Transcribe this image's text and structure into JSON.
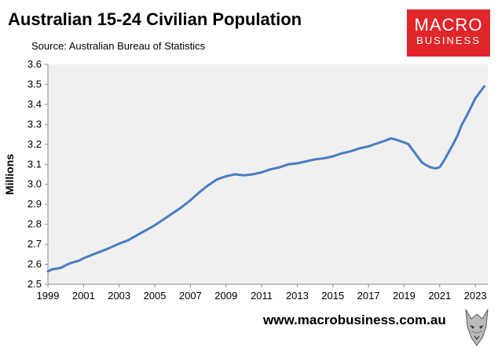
{
  "header": {
    "title": "Australian 15-24 Civilian Population",
    "source": "Source: Australian Bureau of Statistics"
  },
  "logo": {
    "top": "MACRO",
    "bottom": "BUSINESS",
    "color": "#e0262a"
  },
  "footer": {
    "url": "www.macrobusiness.com.au",
    "emblem_icon": "wolf-icon"
  },
  "chart_data": {
    "type": "line",
    "title": "Australian 15-24 Civilian Population",
    "xlabel": "",
    "ylabel": "Millions",
    "xlim": [
      1999,
      2023.7
    ],
    "ylim": [
      2.5,
      3.6
    ],
    "yticks": [
      "2.5",
      "2.6",
      "2.7",
      "2.8",
      "2.9",
      "3.0",
      "3.1",
      "3.2",
      "3.3",
      "3.4",
      "3.5",
      "3.6"
    ],
    "xticks": [
      "1999",
      "2001",
      "2003",
      "2005",
      "2007",
      "2009",
      "2011",
      "2013",
      "2015",
      "2017",
      "2019",
      "2021",
      "2023"
    ],
    "grid": false,
    "plot_background": "#f0f0f0",
    "line_color": "#4a7cc0",
    "series": [
      {
        "x": [
          1999.0,
          1999.25,
          1999.5,
          1999.75,
          2000.0,
          2000.25,
          2000.5,
          2000.75,
          2001.0,
          2001.5,
          2002.0,
          2002.5,
          2003.0,
          2003.5,
          2004.0,
          2004.5,
          2005.0,
          2005.5,
          2006.0,
          2006.5,
          2007.0,
          2007.5,
          2008.0,
          2008.5,
          2009.0,
          2009.5,
          2010.0,
          2010.5,
          2011.0,
          2011.5,
          2012.0,
          2012.5,
          2013.0,
          2013.5,
          2014.0,
          2014.5,
          2015.0,
          2015.5,
          2016.0,
          2016.5,
          2017.0,
          2017.5,
          2018.0,
          2018.25,
          2018.5,
          2019.0,
          2019.25,
          2019.5,
          2019.75,
          2020.0,
          2020.25,
          2020.5,
          2020.75,
          2021.0,
          2021.25,
          2021.5,
          2021.75,
          2022.0,
          2022.25,
          2022.5,
          2022.75,
          2023.0,
          2023.25,
          2023.5
        ],
        "y": [
          2.565,
          2.575,
          2.578,
          2.583,
          2.595,
          2.605,
          2.612,
          2.618,
          2.63,
          2.648,
          2.665,
          2.683,
          2.703,
          2.72,
          2.745,
          2.77,
          2.795,
          2.825,
          2.855,
          2.885,
          2.92,
          2.96,
          2.995,
          3.025,
          3.04,
          3.05,
          3.045,
          3.05,
          3.06,
          3.075,
          3.085,
          3.1,
          3.105,
          3.115,
          3.125,
          3.13,
          3.14,
          3.155,
          3.165,
          3.18,
          3.19,
          3.205,
          3.22,
          3.23,
          3.225,
          3.21,
          3.2,
          3.17,
          3.14,
          3.11,
          3.095,
          3.085,
          3.08,
          3.085,
          3.12,
          3.16,
          3.2,
          3.245,
          3.3,
          3.34,
          3.385,
          3.43,
          3.46,
          3.49
        ]
      }
    ]
  }
}
